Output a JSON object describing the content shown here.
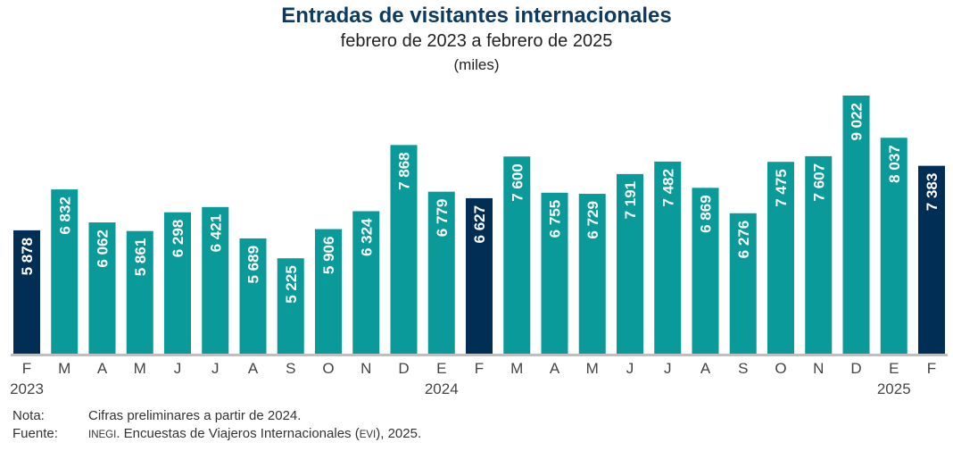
{
  "chart_data": {
    "type": "bar",
    "title": "Entradas de visitantes internacionales",
    "subtitle": "febrero de 2023 a febrero de 2025",
    "unit_label": "(miles)",
    "xlabel": "",
    "ylabel": "",
    "ylim": [
      3000,
      9300
    ],
    "grid": false,
    "categories": [
      "F",
      "M",
      "A",
      "M",
      "J",
      "J",
      "A",
      "S",
      "O",
      "N",
      "D",
      "E",
      "F",
      "M",
      "A",
      "M",
      "J",
      "J",
      "A",
      "S",
      "O",
      "N",
      "D",
      "E",
      "F"
    ],
    "year_labels": [
      {
        "index": 0,
        "label": "2023"
      },
      {
        "index": 11,
        "label": "2024"
      },
      {
        "index": 23,
        "label": "2025"
      }
    ],
    "values": [
      5878,
      6832,
      6062,
      5861,
      6298,
      6421,
      5689,
      5225,
      5906,
      6324,
      7868,
      6779,
      6627,
      7600,
      6755,
      6729,
      7191,
      7482,
      6869,
      6276,
      7475,
      7607,
      9022,
      8037,
      7383
    ],
    "value_labels": [
      "5 878",
      "6 832",
      "6 062",
      "5 861",
      "6 298",
      "6 421",
      "5 689",
      "5 225",
      "5 906",
      "6 324",
      "7 868",
      "6 779",
      "6 627",
      "7 600",
      "6 755",
      "6 729",
      "7 191",
      "7 482",
      "6 869",
      "6 276",
      "7 475",
      "7 607",
      "9 022",
      "8 037",
      "7 383"
    ],
    "highlighted_indices": [
      0,
      12,
      24
    ],
    "colors": {
      "default": "#0a9a9a",
      "highlight": "#002e55",
      "axis": "#bfbfbf"
    }
  },
  "notes": {
    "nota_label": "Nota:",
    "nota_text": "Cifras preliminares a partir de 2024.",
    "fuente_label": "Fuente:",
    "fuente_inegi": "INEGI",
    "fuente_text_1": ". Encuestas de Viajeros Internacionales (",
    "fuente_evi": "EVI",
    "fuente_text_2": "), 2025."
  }
}
